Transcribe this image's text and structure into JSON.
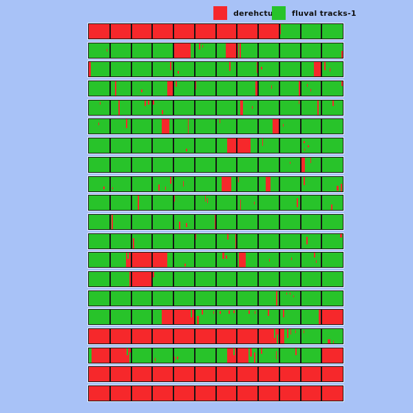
{
  "colors": {
    "background": "#a8c2f7",
    "red": "#f6282b",
    "green": "#28c32a",
    "cell_border": "#141414",
    "row_outline": "#e9effd",
    "legend_text": "#101010"
  },
  "legend": {
    "items": [
      {
        "label": "derehctub-",
        "color": "#f6282b"
      },
      {
        "label": "fluval tracks-1",
        "color": "#28c32a"
      }
    ]
  },
  "chart_data": {
    "type": "heatmap",
    "title": "",
    "legend_entries": [
      "derehctub-",
      "fluval tracks-1"
    ],
    "n_rows": 20,
    "n_cols": 12,
    "legend_position": "top",
    "row_format": "cells = 12 base cell colors (R=red derehctub-, G=green fluval tracks-1); marks = [color, left%, width%, top%, height%] overlay streaks",
    "rows": [
      {
        "cells": "RRRRRRRRRGGG",
        "marks": [
          [
            "R",
            75.0,
            0.5,
            0,
            70
          ]
        ]
      },
      {
        "cells": "GGGGGGGGGGGG",
        "marks": [
          [
            "R",
            7.0,
            0.4,
            40,
            20
          ],
          [
            "R",
            33.7,
            6.3,
            0,
            100
          ],
          [
            "R",
            43.4,
            0.6,
            0,
            45
          ],
          [
            "R",
            44.6,
            0.4,
            10,
            20
          ],
          [
            "R",
            53.8,
            4.9,
            0,
            100
          ],
          [
            "R",
            59.4,
            0.5,
            0,
            100
          ],
          [
            "R",
            99.4,
            0.6,
            55,
            45
          ]
        ]
      },
      {
        "cells": "GGGGGGGGGGGG",
        "marks": [
          [
            "R",
            0,
            0.8,
            0,
            100
          ],
          [
            "R",
            16.5,
            0.4,
            30,
            25
          ],
          [
            "R",
            32.0,
            0.5,
            0,
            55
          ],
          [
            "R",
            35.0,
            0.4,
            60,
            20
          ],
          [
            "R",
            55.2,
            0.5,
            0,
            60
          ],
          [
            "R",
            66.0,
            0.5,
            0,
            75
          ],
          [
            "R",
            67.8,
            0.4,
            30,
            20
          ],
          [
            "R",
            88.6,
            2.7,
            0,
            100
          ],
          [
            "R",
            90.2,
            0.4,
            20,
            30
          ],
          [
            "R",
            92.7,
            0.5,
            0,
            55
          ],
          [
            "R",
            94.8,
            0.4,
            40,
            25
          ]
        ]
      },
      {
        "cells": "GGGGGGGGGGGG",
        "marks": [
          [
            "R",
            10.2,
            0.6,
            0,
            100
          ],
          [
            "R",
            20.7,
            0.4,
            55,
            20
          ],
          [
            "R",
            31.0,
            2.4,
            0,
            100
          ],
          [
            "R",
            34.2,
            0.5,
            0,
            40
          ],
          [
            "R",
            41.9,
            0.5,
            0,
            55
          ],
          [
            "R",
            65.5,
            0.9,
            0,
            100
          ],
          [
            "R",
            71.7,
            0.4,
            30,
            20
          ],
          [
            "R",
            82.6,
            1.2,
            0,
            100
          ],
          [
            "R",
            85.9,
            0.4,
            20,
            20
          ],
          [
            "R",
            87.2,
            0.4,
            50,
            20
          ],
          [
            "R",
            99.5,
            0.5,
            0,
            35
          ]
        ]
      },
      {
        "cells": "GGGGGGGGGGGG",
        "marks": [
          [
            "R",
            4.3,
            0.4,
            10,
            20
          ],
          [
            "R",
            11.7,
            0.5,
            0,
            100
          ],
          [
            "R",
            22.0,
            0.5,
            0,
            40
          ],
          [
            "R",
            23.4,
            0.4,
            0,
            30
          ],
          [
            "R",
            25.3,
            0.4,
            0,
            30
          ],
          [
            "R",
            28.8,
            0.4,
            70,
            25
          ],
          [
            "R",
            59.5,
            1.3,
            0,
            100
          ],
          [
            "R",
            64.1,
            0.4,
            40,
            20
          ],
          [
            "R",
            82.6,
            0.4,
            0,
            25
          ],
          [
            "R",
            89.9,
            0.5,
            0,
            100
          ],
          [
            "R",
            95.9,
            0.5,
            0,
            40
          ]
        ]
      },
      {
        "cells": "GGGGGGGGGGGG",
        "marks": [
          [
            "R",
            3.8,
            0.4,
            20,
            20
          ],
          [
            "R",
            14.7,
            0.5,
            0,
            60
          ],
          [
            "R",
            28.8,
            2.8,
            0,
            100
          ],
          [
            "R",
            38.9,
            0.5,
            0,
            100
          ],
          [
            "R",
            51.4,
            0.4,
            0,
            25
          ],
          [
            "R",
            72.3,
            2.7,
            0,
            100
          ],
          [
            "R",
            76.4,
            0.4,
            30,
            20
          ]
        ]
      },
      {
        "cells": "GGGGGGGGGGGG",
        "marks": [
          [
            "R",
            38.3,
            0.4,
            70,
            20
          ],
          [
            "R",
            54.6,
            9.0,
            0,
            100
          ],
          [
            "R",
            68.2,
            0.4,
            0,
            50
          ],
          [
            "R",
            84.5,
            0.5,
            20,
            15
          ],
          [
            "R",
            86.1,
            0.5,
            45,
            15
          ],
          [
            "R",
            84.8,
            0.4,
            70,
            15
          ]
        ]
      },
      {
        "cells": "GGGGGGGGGGGG",
        "marks": [
          [
            "R",
            79.0,
            0.4,
            30,
            15
          ],
          [
            "R",
            83.7,
            1.4,
            0,
            100
          ],
          [
            "R",
            87.2,
            0.4,
            0,
            40
          ]
        ]
      },
      {
        "cells": "GGGGGGGGGGGG",
        "marks": [
          [
            "R",
            5.7,
            0.4,
            70,
            20
          ],
          [
            "R",
            9.2,
            0.4,
            75,
            15
          ],
          [
            "R",
            27.5,
            0.5,
            55,
            45
          ],
          [
            "R",
            30.0,
            0.4,
            70,
            25
          ],
          [
            "R",
            32.0,
            0.5,
            0,
            50
          ],
          [
            "R",
            37.0,
            0.4,
            30,
            40
          ],
          [
            "R",
            52.4,
            3.6,
            0,
            100
          ],
          [
            "R",
            58.7,
            0.4,
            0,
            40
          ],
          [
            "R",
            69.6,
            1.9,
            0,
            100
          ],
          [
            "R",
            84.5,
            0.5,
            0,
            60
          ],
          [
            "R",
            97.5,
            0.8,
            65,
            35
          ],
          [
            "R",
            99.3,
            0.5,
            50,
            50
          ]
        ]
      },
      {
        "cells": "GGGGGGGGGGGG",
        "marks": [
          [
            "R",
            19.3,
            0.5,
            0,
            100
          ],
          [
            "R",
            33.4,
            0.5,
            0,
            40
          ],
          [
            "R",
            45.7,
            0.5,
            0,
            40
          ],
          [
            "R",
            46.6,
            0.4,
            20,
            30
          ],
          [
            "R",
            59.5,
            0.5,
            30,
            70
          ],
          [
            "R",
            65.0,
            0.4,
            40,
            20
          ],
          [
            "R",
            81.8,
            0.5,
            20,
            60
          ],
          [
            "R",
            95.4,
            0.5,
            60,
            40
          ]
        ]
      },
      {
        "cells": "GGGGGGGGGGGG",
        "marks": [
          [
            "R",
            9.0,
            0.5,
            0,
            100
          ],
          [
            "R",
            35.6,
            0.5,
            50,
            50
          ],
          [
            "R",
            38.3,
            0.4,
            60,
            25
          ],
          [
            "R",
            49.5,
            0.6,
            0,
            100
          ]
        ]
      },
      {
        "cells": "GGGGGGGGGGGG",
        "marks": [
          [
            "R",
            17.4,
            0.5,
            30,
            70
          ],
          [
            "R",
            41.9,
            0.5,
            0,
            40
          ],
          [
            "R",
            54.6,
            0.4,
            0,
            40
          ],
          [
            "R",
            57.6,
            0.5,
            0,
            100
          ],
          [
            "R",
            85.6,
            0.5,
            20,
            55
          ],
          [
            "R",
            99.0,
            0.6,
            0,
            25
          ]
        ]
      },
      {
        "cells": "GGRGGGGGGGGG",
        "marks": [
          [
            "R",
            14.7,
            2.0,
            0,
            100
          ],
          [
            "G",
            15.2,
            0.5,
            0,
            40
          ],
          [
            "R",
            25.3,
            5.7,
            0,
            100
          ],
          [
            "R",
            37.8,
            0.5,
            75,
            20
          ],
          [
            "R",
            52.7,
            0.6,
            0,
            40
          ],
          [
            "R",
            54.0,
            0.4,
            20,
            20
          ],
          [
            "R",
            59.0,
            2.7,
            0,
            100
          ],
          [
            "R",
            71.0,
            0.4,
            40,
            20
          ],
          [
            "R",
            79.6,
            0.4,
            30,
            20
          ],
          [
            "R",
            88.6,
            0.5,
            0,
            30
          ],
          [
            "R",
            89.4,
            0.4,
            50,
            20
          ]
        ]
      },
      {
        "cells": "GGRGGGGGGGGG",
        "marks": [
          [
            "R",
            16.0,
            0.8,
            0,
            100
          ],
          [
            "R",
            25.3,
            0.5,
            0,
            40
          ]
        ]
      },
      {
        "cells": "GGGGGGGGGGGG",
        "marks": [
          [
            "R",
            73.6,
            0.7,
            0,
            100
          ],
          [
            "R",
            77.7,
            0.4,
            10,
            15
          ],
          [
            "R",
            79.0,
            0.4,
            10,
            15
          ],
          [
            "R",
            80.4,
            0.4,
            30,
            15
          ]
        ]
      },
      {
        "cells": "GGGGGGGGGGGR",
        "marks": [
          [
            "R",
            28.8,
            13.2,
            0,
            100
          ],
          [
            "G",
            40.0,
            0.6,
            0,
            50
          ],
          [
            "R",
            42.5,
            0.8,
            40,
            60
          ],
          [
            "R",
            44.5,
            0.5,
            0,
            30
          ],
          [
            "R",
            49.0,
            0.4,
            10,
            15
          ],
          [
            "R",
            51.5,
            0.4,
            10,
            15
          ],
          [
            "R",
            55.0,
            0.5,
            5,
            20
          ],
          [
            "R",
            57.0,
            0.4,
            5,
            15
          ],
          [
            "R",
            63.0,
            0.5,
            5,
            20
          ],
          [
            "R",
            65.3,
            0.4,
            10,
            15
          ],
          [
            "R",
            70.5,
            0.5,
            0,
            40
          ],
          [
            "R",
            76.5,
            0.6,
            0,
            50
          ],
          [
            "R",
            90.5,
            1.3,
            0,
            100
          ]
        ]
      },
      {
        "cells": "RRRRRRRRRGGG",
        "marks": [
          [
            "R",
            75.0,
            2.0,
            0,
            100
          ],
          [
            "G",
            73.0,
            0.5,
            0,
            60
          ],
          [
            "G",
            74.0,
            0.4,
            40,
            60
          ],
          [
            "R",
            78.0,
            0.5,
            0,
            60
          ],
          [
            "R",
            79.3,
            0.4,
            0,
            40
          ],
          [
            "R",
            81.3,
            0.4,
            10,
            20
          ],
          [
            "R",
            84.5,
            0.4,
            10,
            20
          ],
          [
            "R",
            94.0,
            1.0,
            70,
            30
          ],
          [
            "R",
            96.2,
            0.4,
            80,
            20
          ]
        ]
      },
      {
        "cells": "RRGGGGGGGGGR",
        "marks": [
          [
            "G",
            0,
            1.0,
            0,
            100
          ],
          [
            "G",
            15.0,
            0.5,
            0,
            50
          ],
          [
            "G",
            16.0,
            0.4,
            30,
            70
          ],
          [
            "R",
            26.0,
            0.4,
            70,
            20
          ],
          [
            "R",
            33.5,
            0.5,
            60,
            25
          ],
          [
            "R",
            34.8,
            0.4,
            60,
            20
          ],
          [
            "R",
            54.6,
            8.2,
            0,
            100
          ],
          [
            "G",
            57.0,
            0.5,
            0,
            50
          ],
          [
            "R",
            63.5,
            0.6,
            0,
            60
          ],
          [
            "R",
            65.0,
            0.5,
            30,
            70
          ],
          [
            "R",
            67.8,
            0.5,
            0,
            40
          ],
          [
            "R",
            73.6,
            0.5,
            20,
            60
          ],
          [
            "R",
            81.3,
            0.5,
            0,
            50
          ],
          [
            "R",
            91.3,
            0.6,
            0,
            100
          ]
        ]
      },
      {
        "cells": "RRRRRRRRRRRR",
        "marks": []
      },
      {
        "cells": "RRRRRRRRRRRR",
        "marks": []
      }
    ]
  }
}
